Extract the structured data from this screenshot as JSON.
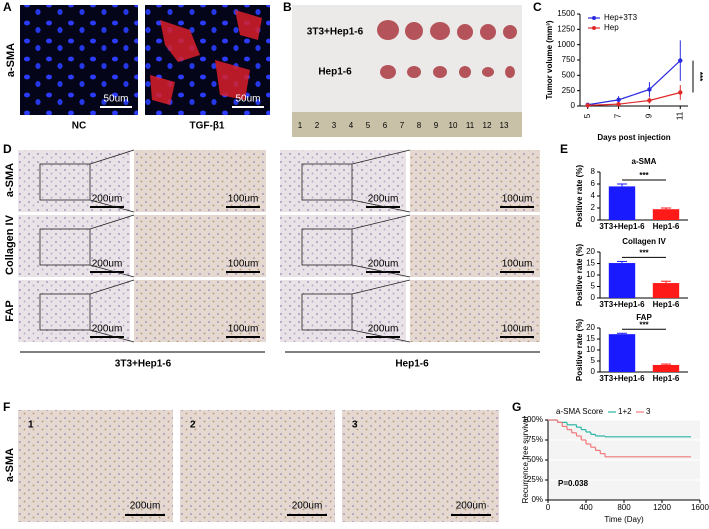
{
  "panel_letters": [
    "A",
    "B",
    "C",
    "D",
    "E",
    "F",
    "G"
  ],
  "panel_a": {
    "row_label": "a-SMA",
    "captions": [
      "NC",
      "TGF-β1"
    ],
    "scale_bar": "50um"
  },
  "panel_b": {
    "rows": [
      "3T3+Hep1-6",
      "Hep1-6"
    ],
    "ruler": [
      "1",
      "2",
      "3",
      "4",
      "5",
      "6",
      "7",
      "8",
      "9",
      "10",
      "11",
      "12",
      "13"
    ]
  },
  "panel_d": {
    "rows": [
      "a-SMA",
      "Collagen IV",
      "FAP"
    ],
    "scale_bars": [
      "200um",
      "100um"
    ],
    "groups": [
      "3T3+Hep1-6",
      "Hep1-6"
    ]
  },
  "panel_f": {
    "row_label": "a-SMA",
    "numbers": [
      "1",
      "2",
      "3"
    ],
    "scale_bar": "200um"
  },
  "chart_data": [
    {
      "type": "line",
      "xlabel": "Days post injection",
      "ylabel": "Tumor volume (mm³)",
      "x": [
        5,
        7,
        9,
        11
      ],
      "xlim": [
        4.5,
        11.5
      ],
      "xticks": [
        5,
        7,
        9,
        11
      ],
      "ylim": [
        0,
        1500
      ],
      "yticks": [
        0,
        250,
        500,
        750,
        1000,
        1250,
        1500
      ],
      "series": [
        {
          "name": "Hep+3T3",
          "color": "#2a2ae0",
          "values": [
            20,
            100,
            270,
            740
          ],
          "errors": [
            15,
            60,
            120,
            330
          ]
        },
        {
          "name": "Hep",
          "color": "#e02a2a",
          "values": [
            10,
            30,
            90,
            220
          ],
          "errors": [
            5,
            20,
            50,
            120
          ]
        }
      ],
      "annotation": "***",
      "legend": "top-left"
    },
    {
      "type": "bar",
      "title": "a-SMA",
      "ylabel": "Positive rate (%)",
      "categories": [
        "3T3+Hep1-6",
        "Hep1-6"
      ],
      "values": [
        5.6,
        1.8
      ],
      "errors": [
        0.4,
        0.2
      ],
      "colors": [
        "#1a1aff",
        "#ff1a1a"
      ],
      "ylim": [
        0,
        8
      ],
      "yticks": [
        0,
        2,
        4,
        6,
        8
      ],
      "annotation": "***"
    },
    {
      "type": "bar",
      "title": "Collagen IV",
      "ylabel": "Positive rate (%)",
      "categories": [
        "3T3+Hep1-6",
        "Hep1-6"
      ],
      "values": [
        15.2,
        6.5
      ],
      "errors": [
        0.7,
        0.8
      ],
      "colors": [
        "#1a1aff",
        "#ff1a1a"
      ],
      "ylim": [
        0,
        20
      ],
      "yticks": [
        0,
        5,
        10,
        15,
        20
      ],
      "annotation": "***"
    },
    {
      "type": "bar",
      "title": "FAP",
      "ylabel": "Positive rate (%)",
      "categories": [
        "3T3+Hep1-6",
        "Hep1-6"
      ],
      "values": [
        17.2,
        3.2
      ],
      "errors": [
        0.4,
        0.4
      ],
      "colors": [
        "#1a1aff",
        "#ff1a1a"
      ],
      "ylim": [
        0,
        20
      ],
      "yticks": [
        0,
        5,
        10,
        15,
        20
      ],
      "annotation": "***"
    },
    {
      "type": "step",
      "xlabel": "Time (Day)",
      "ylabel": "Recurrence free survival",
      "legend_title": "a-SMA Score",
      "xlim": [
        0,
        1600
      ],
      "xticks": [
        0,
        400,
        800,
        1200,
        1600
      ],
      "ylim": [
        0,
        100
      ],
      "yticks": [
        {
          "value": 0,
          "label": "0%"
        },
        {
          "value": 25,
          "label": "25%"
        },
        {
          "value": 50,
          "label": "50%"
        },
        {
          "value": 75,
          "label": "75%"
        },
        {
          "value": 100,
          "label": "100%"
        }
      ],
      "series": [
        {
          "name": "1+2",
          "color": "#2bb5a5",
          "x": [
            0,
            100,
            200,
            300,
            350,
            400,
            450,
            500,
            600,
            1500
          ],
          "values": [
            100,
            97,
            94,
            91,
            88,
            85,
            82,
            80,
            79,
            79
          ]
        },
        {
          "name": "3",
          "color": "#f07878",
          "x": [
            0,
            100,
            150,
            200,
            250,
            300,
            350,
            400,
            450,
            500,
            550,
            600,
            1500
          ],
          "values": [
            100,
            97,
            92,
            88,
            84,
            80,
            75,
            70,
            66,
            62,
            58,
            54,
            54
          ]
        }
      ],
      "annotation": "P=0.038",
      "legend": "top"
    }
  ]
}
